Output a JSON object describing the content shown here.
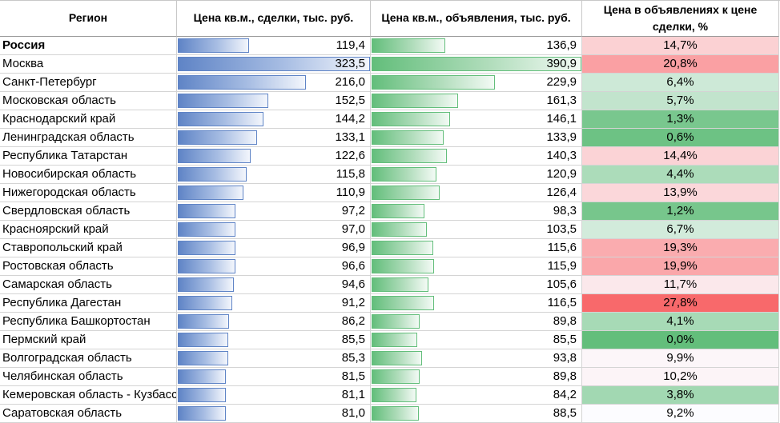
{
  "headers": {
    "region": "Регион",
    "deal": "Цена кв.м., сделки, тыс. руб.",
    "ad": "Цена кв.м., объявления, тыс. руб.",
    "pct": "Цена в объявлениях к цене сделки, %"
  },
  "colors": {
    "deal_bar": "#5f84c6",
    "ad_bar": "#63be7b",
    "pct_low": "#63be7b",
    "pct_mid": "#fcfcff",
    "pct_high": "#f8696b"
  },
  "chart_data": {
    "type": "table",
    "columns": [
      "Регион",
      "Цена кв.м., сделки, тыс. руб.",
      "Цена кв.м., объявления, тыс. руб.",
      "Цена в объявлениях к цене сделки, %"
    ],
    "rows": [
      {
        "region": "Россия",
        "deal": 119.4,
        "deal_text": "119,4",
        "ad": 136.9,
        "ad_text": "136,9",
        "pct": 14.7,
        "pct_text": "14,7%",
        "bold": true
      },
      {
        "region": "Москва",
        "deal": 323.5,
        "deal_text": "323,5",
        "ad": 390.9,
        "ad_text": "390,9",
        "pct": 20.8,
        "pct_text": "20,8%"
      },
      {
        "region": "Санкт-Петербург",
        "deal": 216.0,
        "deal_text": "216,0",
        "ad": 229.9,
        "ad_text": "229,9",
        "pct": 6.4,
        "pct_text": "6,4%"
      },
      {
        "region": "Московская область",
        "deal": 152.5,
        "deal_text": "152,5",
        "ad": 161.3,
        "ad_text": "161,3",
        "pct": 5.7,
        "pct_text": "5,7%"
      },
      {
        "region": "Краснодарский край",
        "deal": 144.2,
        "deal_text": "144,2",
        "ad": 146.1,
        "ad_text": "146,1",
        "pct": 1.3,
        "pct_text": "1,3%"
      },
      {
        "region": "Ленинградская область",
        "deal": 133.1,
        "deal_text": "133,1",
        "ad": 133.9,
        "ad_text": "133,9",
        "pct": 0.6,
        "pct_text": "0,6%"
      },
      {
        "region": "Республика Татарстан",
        "deal": 122.6,
        "deal_text": "122,6",
        "ad": 140.3,
        "ad_text": "140,3",
        "pct": 14.4,
        "pct_text": "14,4%"
      },
      {
        "region": "Новосибирская область",
        "deal": 115.8,
        "deal_text": "115,8",
        "ad": 120.9,
        "ad_text": "120,9",
        "pct": 4.4,
        "pct_text": "4,4%"
      },
      {
        "region": "Нижегородская область",
        "deal": 110.9,
        "deal_text": "110,9",
        "ad": 126.4,
        "ad_text": "126,4",
        "pct": 13.9,
        "pct_text": "13,9%"
      },
      {
        "region": "Свердловская область",
        "deal": 97.2,
        "deal_text": "97,2",
        "ad": 98.3,
        "ad_text": "98,3",
        "pct": 1.2,
        "pct_text": "1,2%"
      },
      {
        "region": "Красноярский край",
        "deal": 97.0,
        "deal_text": "97,0",
        "ad": 103.5,
        "ad_text": "103,5",
        "pct": 6.7,
        "pct_text": "6,7%"
      },
      {
        "region": "Ставропольский край",
        "deal": 96.9,
        "deal_text": "96,9",
        "ad": 115.6,
        "ad_text": "115,6",
        "pct": 19.3,
        "pct_text": "19,3%"
      },
      {
        "region": "Ростовская область",
        "deal": 96.6,
        "deal_text": "96,6",
        "ad": 115.9,
        "ad_text": "115,9",
        "pct": 19.9,
        "pct_text": "19,9%"
      },
      {
        "region": "Самарская область",
        "deal": 94.6,
        "deal_text": "94,6",
        "ad": 105.6,
        "ad_text": "105,6",
        "pct": 11.7,
        "pct_text": "11,7%"
      },
      {
        "region": "Республика Дагестан",
        "deal": 91.2,
        "deal_text": "91,2",
        "ad": 116.5,
        "ad_text": "116,5",
        "pct": 27.8,
        "pct_text": "27,8%"
      },
      {
        "region": "Республика Башкортостан",
        "deal": 86.2,
        "deal_text": "86,2",
        "ad": 89.8,
        "ad_text": "89,8",
        "pct": 4.1,
        "pct_text": "4,1%"
      },
      {
        "region": "Пермский край",
        "deal": 85.5,
        "deal_text": "85,5",
        "ad": 85.5,
        "ad_text": "85,5",
        "pct": 0.0,
        "pct_text": "0,0%"
      },
      {
        "region": "Волгоградская область",
        "deal": 85.3,
        "deal_text": "85,3",
        "ad": 93.8,
        "ad_text": "93,8",
        "pct": 9.9,
        "pct_text": "9,9%"
      },
      {
        "region": "Челябинская область",
        "deal": 81.5,
        "deal_text": "81,5",
        "ad": 89.8,
        "ad_text": "89,8",
        "pct": 10.2,
        "pct_text": "10,2%"
      },
      {
        "region": "Кемеровская область - Кузбасс",
        "deal": 81.1,
        "deal_text": "81,1",
        "ad": 84.2,
        "ad_text": "84,2",
        "pct": 3.8,
        "pct_text": "3,8%"
      },
      {
        "region": "Саратовская область",
        "deal": 81.0,
        "deal_text": "81,0",
        "ad": 88.5,
        "ad_text": "88,5",
        "pct": 9.2,
        "pct_text": "9,2%"
      }
    ]
  }
}
